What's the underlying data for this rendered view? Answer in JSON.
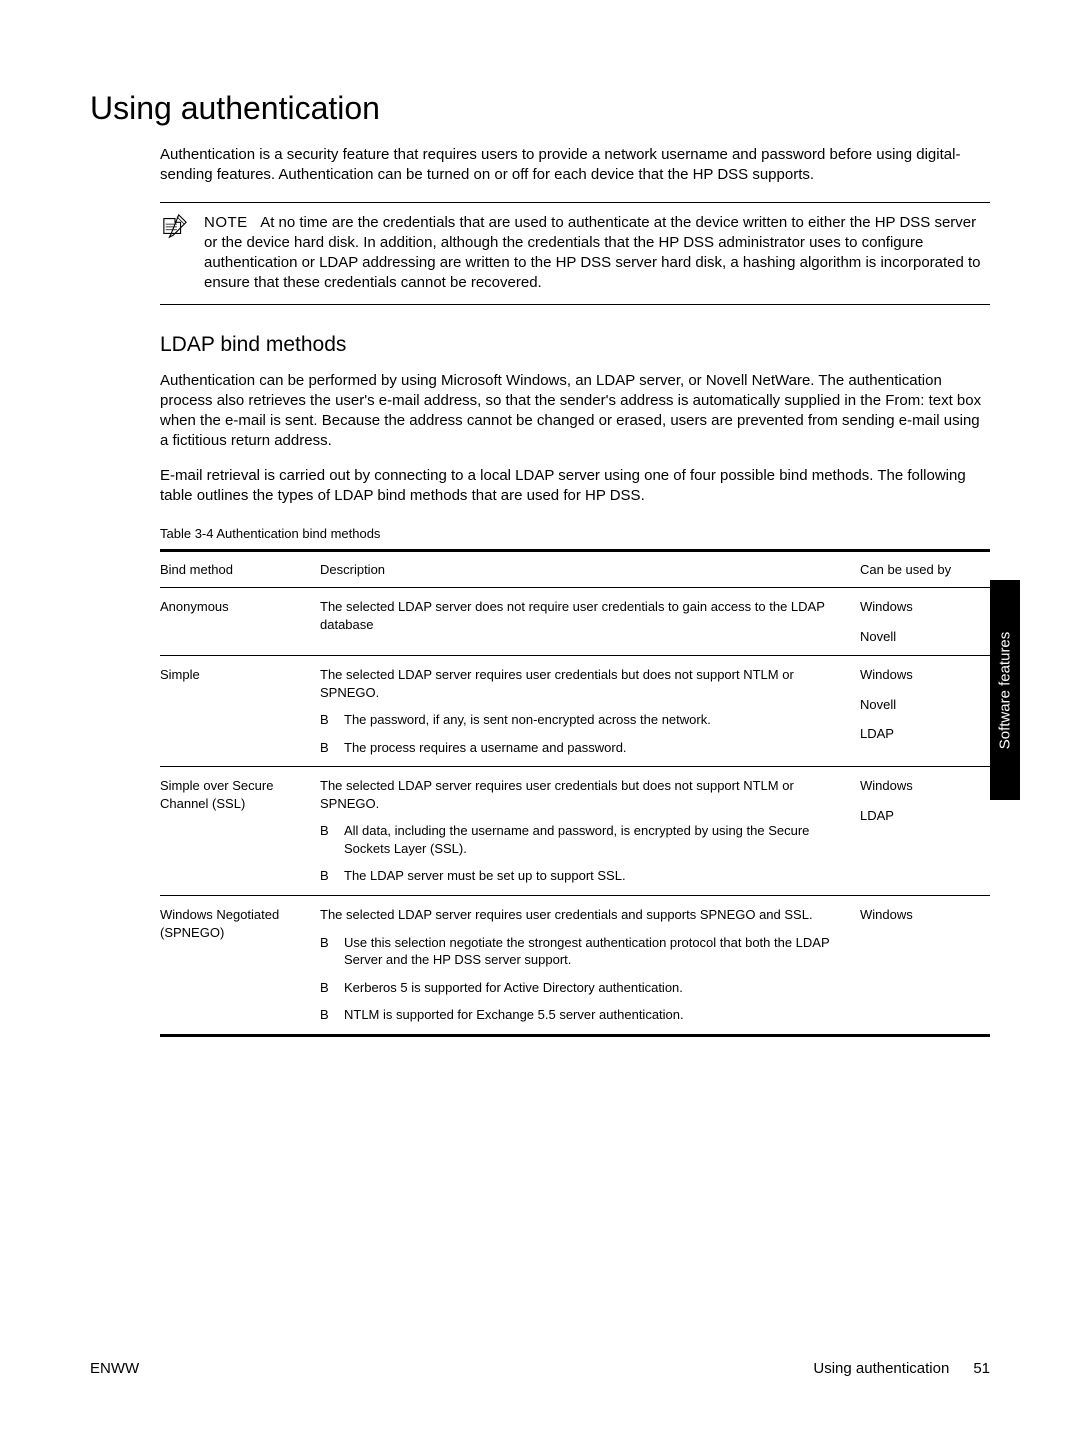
{
  "title": "Using authentication",
  "intro": "Authentication is a security feature that requires users to provide a network username and password before using digital-sending features. Authentication can be turned on or off for each device that the HP DSS supports.",
  "note": {
    "label": "NOTE",
    "text": "At no time are the credentials that are used to authenticate at the device written to either the HP DSS server or the device hard disk. In addition, although the credentials that the HP DSS administrator uses to configure authentication or LDAP addressing are written to the HP DSS server hard disk, a hashing algorithm is incorporated to ensure that these credentials cannot be recovered."
  },
  "subheading": "LDAP bind methods",
  "para1": "Authentication can be performed by using Microsoft Windows, an LDAP server, or Novell NetWare. The authentication process also retrieves the user's e-mail address, so that the sender's address is automatically supplied in the From:  text box when the e-mail is sent. Because the address cannot be changed or erased, users are prevented from sending e-mail using a fictitious return address.",
  "para2": "E-mail retrieval is carried out by connecting to a local LDAP server using one of four possible bind methods. The following table outlines the types of LDAP bind methods that are used for HP DSS.",
  "table_caption": "Table 3-4  Authentication bind methods",
  "table": {
    "headers": [
      "Bind method",
      "Description",
      "Can be used by"
    ],
    "rows": [
      {
        "method": "Anonymous",
        "desc_intro": "The selected LDAP server does not require user credentials to gain access to the LDAP database",
        "bullets": [],
        "usedby": [
          "Windows",
          "Novell"
        ]
      },
      {
        "method": "Simple",
        "desc_intro": "The selected LDAP server requires user credentials but does not support NTLM or SPNEGO.",
        "bullets": [
          "The password, if any, is sent non-encrypted across the network.",
          "The process requires a username and password."
        ],
        "usedby": [
          "Windows",
          "Novell",
          "LDAP"
        ]
      },
      {
        "method": "Simple over Secure Channel (SSL)",
        "desc_intro": "The selected LDAP server requires user credentials but does not support NTLM or SPNEGO.",
        "bullets": [
          "All data, including the username and password, is encrypted by using the Secure Sockets Layer (SSL).",
          "The LDAP server must be set up to support SSL."
        ],
        "usedby": [
          "Windows",
          "LDAP"
        ]
      },
      {
        "method": "Windows Negotiated (SPNEGO)",
        "desc_intro": "The selected LDAP server requires user credentials and supports SPNEGO and SSL.",
        "bullets": [
          "Use this selection negotiate the strongest authentication protocol that both the LDAP Server and the HP DSS server support.",
          "Kerberos 5 is supported for Active Directory authentication.",
          "NTLM is supported for Exchange 5.5 server authentication."
        ],
        "usedby": [
          "Windows"
        ]
      }
    ]
  },
  "sidetab": "Software features",
  "footer": {
    "left": "ENWW",
    "right_text": "Using authentication",
    "page": "51"
  },
  "bullet_marker": "B"
}
